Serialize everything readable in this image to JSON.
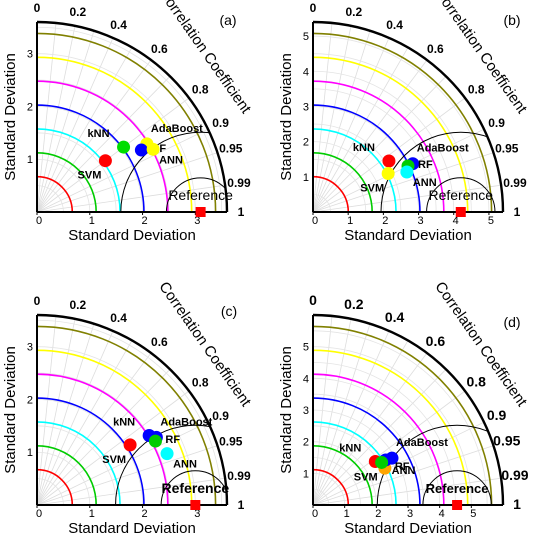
{
  "figure": {
    "x_axis_label": "Standard Deviation",
    "y_axis_label": "Standard Deviation",
    "correlation_label": "Correlation Coefficient",
    "reference_label": "Reference"
  },
  "colors": {
    "reference": "#ff0000",
    "rms_arcs": "#000000",
    "contours": [
      "#808000",
      "#ffff00",
      "#ff00ff",
      "#0000ff",
      "#00ffff",
      "#00cc00",
      "#ff0000"
    ],
    "knn": "#00dd00",
    "svm": "#ff0000",
    "ann": "#ffff00",
    "rf": "#0000ff",
    "adaboost": "#ffff00"
  },
  "chart_data": [
    {
      "type": "scatter",
      "subtype": "taylor-diagram",
      "panel_label": "(a)",
      "xlabel": "Standard Deviation",
      "ylabel": "Standard Deviation",
      "correlation_label": "Correlation Coefficient",
      "reference_label": "Reference",
      "std_max": 3.6,
      "radial_ticks": [
        0,
        1,
        2,
        3
      ],
      "correlation_ticks": [
        "0",
        "0.2",
        "0.4",
        "0.6",
        "0.8",
        "0.9",
        "0.95",
        "0.99",
        "1"
      ],
      "reference": {
        "std": 3.1,
        "correlation": 1
      },
      "models": [
        {
          "name": "kNN",
          "std": 2.05,
          "correlation": 0.8,
          "color": "#00dd00"
        },
        {
          "name": "AdaBoost",
          "std": 2.45,
          "correlation": 0.85,
          "color": "#ffff00"
        },
        {
          "name": "RF",
          "std": 2.3,
          "correlation": 0.86,
          "color": "#0000ff"
        },
        {
          "name": "ANN",
          "std": 2.5,
          "correlation": 0.88,
          "color": "#ffff00"
        },
        {
          "name": "SVM",
          "std": 1.62,
          "correlation": 0.8,
          "color": "#ff0000"
        }
      ]
    },
    {
      "type": "scatter",
      "subtype": "taylor-diagram",
      "panel_label": "(b)",
      "xlabel": "Standard Deviation",
      "ylabel": "Standard Deviation",
      "correlation_label": "Correlation Coefficient",
      "reference_label": "Reference",
      "std_max": 5.4,
      "radial_ticks": [
        0,
        1,
        2,
        3,
        4,
        5
      ],
      "correlation_ticks": [
        "0",
        "0.2",
        "0.4",
        "0.6",
        "0.8",
        "0.9",
        "0.95",
        "0.99",
        "1"
      ],
      "reference": {
        "std": 4.2,
        "correlation": 1
      },
      "models": [
        {
          "name": "kNN",
          "std": 2.6,
          "correlation": 0.83,
          "color": "#ff0000"
        },
        {
          "name": "AdaBoost",
          "std": 3.15,
          "correlation": 0.9,
          "color": "#0000ff"
        },
        {
          "name": "RF",
          "std": 3.0,
          "correlation": 0.9,
          "color": "#00cc00"
        },
        {
          "name": "ANN",
          "std": 2.9,
          "correlation": 0.92,
          "color": "#00ffff"
        },
        {
          "name": "SVM",
          "std": 2.4,
          "correlation": 0.89,
          "color": "#ffff00"
        }
      ]
    },
    {
      "type": "scatter",
      "subtype": "taylor-diagram",
      "panel_label": "(c)",
      "xlabel": "Standard Deviation",
      "ylabel": "Standard Deviation",
      "correlation_label": "Correlation Coefficient",
      "reference_label": "Reference",
      "std_max": 3.6,
      "radial_ticks": [
        0,
        1,
        2,
        3
      ],
      "correlation_ticks": [
        "0",
        "0.2",
        "0.4",
        "0.6",
        "0.8",
        "0.9",
        "0.95",
        "0.99",
        "1"
      ],
      "reference": {
        "std": 3.0,
        "correlation": 1
      },
      "models": [
        {
          "name": "kNN",
          "std": 2.5,
          "correlation": 0.85,
          "color": "#0000ff"
        },
        {
          "name": "AdaBoost",
          "std": 2.6,
          "correlation": 0.87,
          "color": "#0000ff"
        },
        {
          "name": "RF",
          "std": 2.55,
          "correlation": 0.88,
          "color": "#00cc00"
        },
        {
          "name": "ANN",
          "std": 2.65,
          "correlation": 0.93,
          "color": "#00ffff"
        },
        {
          "name": "SVM",
          "std": 2.1,
          "correlation": 0.84,
          "color": "#ff0000"
        }
      ]
    },
    {
      "type": "scatter",
      "subtype": "taylor-diagram",
      "panel_label": "(d)",
      "xlabel": "Standard Deviation",
      "ylabel": "Standard Deviation",
      "correlation_label": "Correlation Coefficient",
      "reference_label": "Reference",
      "std_max": 6.0,
      "radial_ticks": [
        0,
        1,
        2,
        3,
        4,
        5
      ],
      "correlation_ticks": [
        "0",
        "0.2",
        "0.4",
        "0.6",
        "0.8",
        "0.9",
        "0.95",
        "0.99",
        "1"
      ],
      "reference": {
        "std": 4.55,
        "correlation": 1
      },
      "models": [
        {
          "name": "kNN",
          "std": 2.4,
          "correlation": 0.82,
          "color": "#ff0000"
        },
        {
          "name": "AdaBoost",
          "std": 2.9,
          "correlation": 0.86,
          "color": "#0000ff"
        },
        {
          "name": "RF",
          "std": 2.55,
          "correlation": 0.89,
          "color": "#ffa500"
        },
        {
          "name": "ANN",
          "std": 2.7,
          "correlation": 0.85,
          "color": "#0000ff"
        },
        {
          "name": "SVM",
          "std": 2.55,
          "correlation": 0.85,
          "color": "#00cc00"
        }
      ]
    }
  ]
}
